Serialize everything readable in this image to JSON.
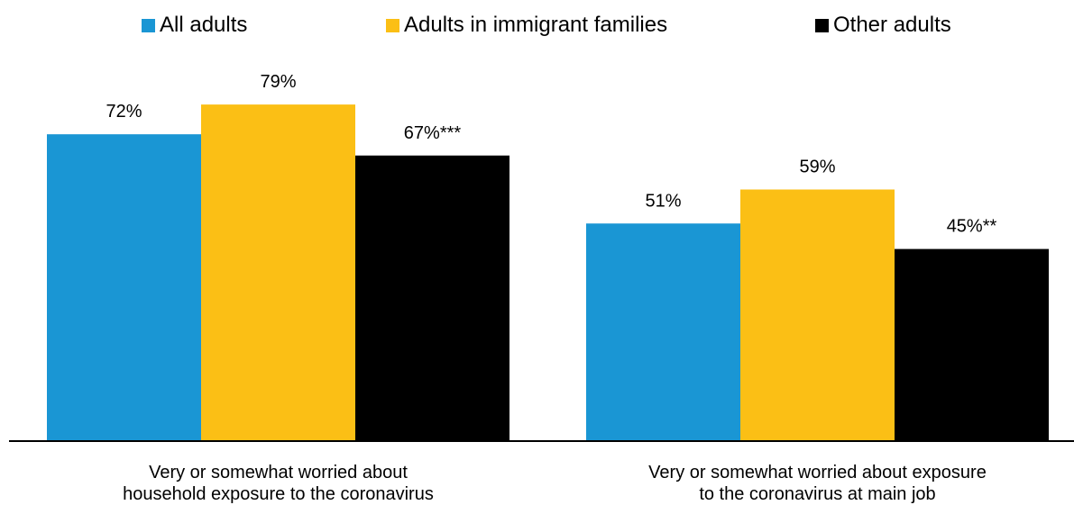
{
  "chart_data": {
    "type": "bar",
    "categories": [
      [
        "Very or somewhat worried about",
        "household exposure to the coronavirus"
      ],
      [
        "Very or somewhat worried about exposure",
        "to the coronavirus at main job"
      ]
    ],
    "series": [
      {
        "name": "All adults",
        "color": "#1a96d4",
        "values": [
          72,
          51
        ],
        "labels": [
          "72%",
          "51%"
        ]
      },
      {
        "name": "Adults in immigrant families",
        "color": "#fbbf15",
        "values": [
          79,
          59
        ],
        "labels": [
          "79%",
          "59%"
        ]
      },
      {
        "name": "Other adults",
        "color": "#000000",
        "values": [
          67,
          45
        ],
        "labels": [
          "67%***",
          "45%**"
        ]
      }
    ],
    "ylim": [
      0,
      100
    ],
    "legend_position": "top",
    "grid": false
  }
}
